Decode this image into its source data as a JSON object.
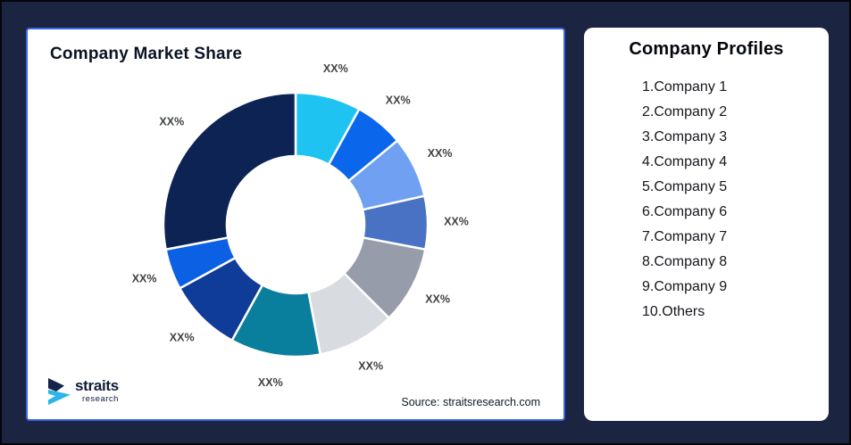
{
  "theme": {
    "canvas_bg": "#1B2440",
    "canvas_border": "#04060C",
    "card_bg": "#FFFFFF",
    "market_card_border": "#3D63E8",
    "label_color": "#3F4245",
    "gap_stroke": "#FFFFFF"
  },
  "market_share_card": {
    "title": "Company Market Share",
    "source": "Source: straitsresearch.com",
    "logo": {
      "name": "straits",
      "sub": "research",
      "icon_navy": "#15254A",
      "icon_cyan": "#2BB5E8"
    }
  },
  "chart_data": {
    "type": "pie",
    "donut": true,
    "title": "Company Market Share",
    "start_angle_deg": 0,
    "direction": "clockwise",
    "inner_radius_ratio": 0.52,
    "legend_position": "none",
    "segments": [
      {
        "name": "Company 1",
        "label": "XX%",
        "share_pct_est": 8,
        "color": "#1EC3F2"
      },
      {
        "name": "Company 2",
        "label": "XX%",
        "share_pct_est": 6,
        "color": "#0A66EB"
      },
      {
        "name": "Company 3",
        "label": "XX%",
        "share_pct_est": 7.5,
        "color": "#6FA0F2"
      },
      {
        "name": "Company 4",
        "label": "XX%",
        "share_pct_est": 6.5,
        "color": "#4A72C4"
      },
      {
        "name": "Company 5",
        "label": "XX%",
        "share_pct_est": 9.5,
        "color": "#969CA9"
      },
      {
        "name": "Company 6",
        "label": "XX%",
        "share_pct_est": 9.5,
        "color": "#D8DBE0"
      },
      {
        "name": "Company 7",
        "label": "XX%",
        "share_pct_est": 11,
        "color": "#0A7E9D"
      },
      {
        "name": "Company 8",
        "label": "XX%",
        "share_pct_est": 9,
        "color": "#0F3C98"
      },
      {
        "name": "Company 9",
        "label": "XX%",
        "share_pct_est": 5,
        "color": "#0C60E4"
      },
      {
        "name": "Others",
        "label": "XX%",
        "share_pct_est": 28,
        "color": "#0C2354"
      }
    ]
  },
  "profiles_card": {
    "title": "Company Profiles",
    "items": [
      "1.Company 1",
      "2.Company 2",
      "3.Company 3",
      "4.Company 4",
      "5.Company 5",
      "6.Company 6",
      "7.Company 7",
      "8.Company 8",
      "9.Company 9",
      "10.Others"
    ]
  }
}
